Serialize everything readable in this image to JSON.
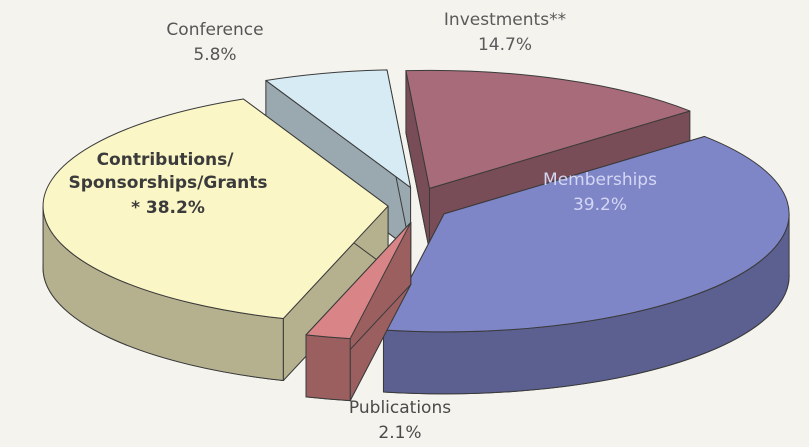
{
  "chart_data": {
    "type": "pie",
    "categories": [
      "Memberships",
      "Publications",
      "Contributions/ Sponsorships/Grants",
      "Conference",
      "Investments**"
    ],
    "values": [
      39.2,
      2.1,
      38.2,
      5.8,
      14.7
    ],
    "value_labels": [
      "39.2%",
      "2.1%",
      "* 38.2%",
      "5.8%",
      "14.7%"
    ],
    "colors": [
      "#7f86c8",
      "#d98486",
      "#fbf6c6",
      "#d6ebf3",
      "#a86b79"
    ],
    "exploded": true,
    "three_d": true
  }
}
